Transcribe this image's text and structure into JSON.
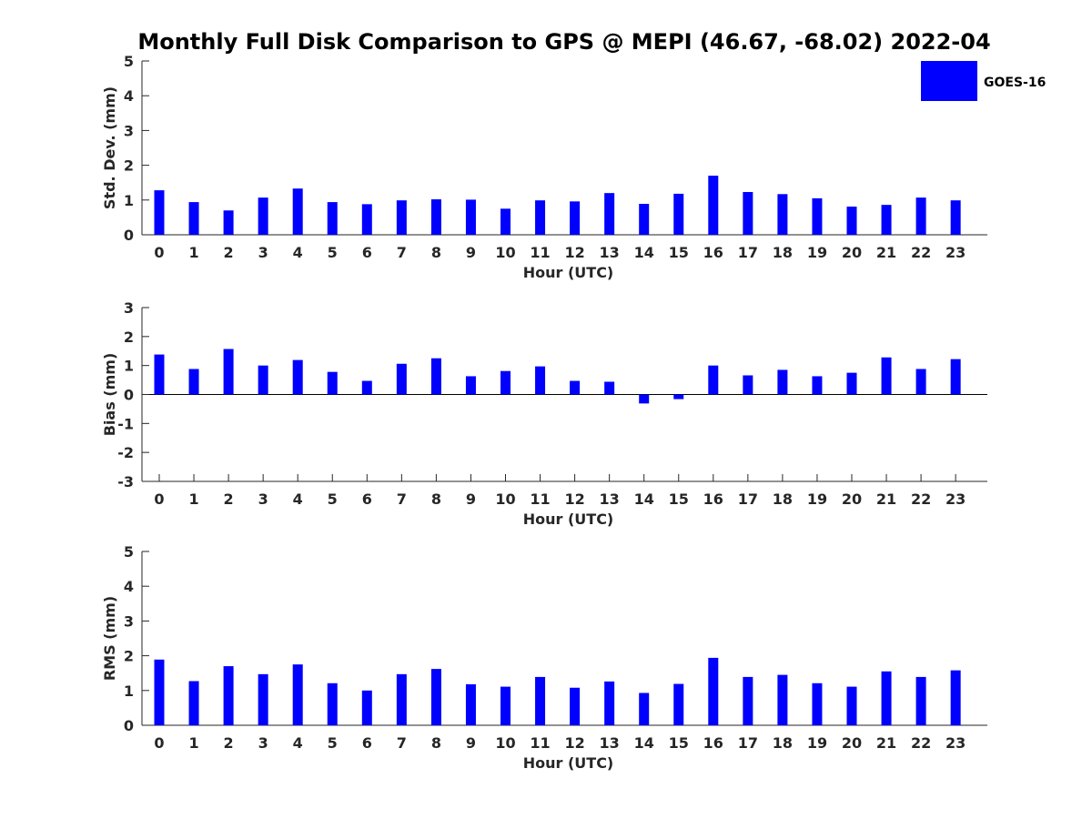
{
  "title": "Monthly Full Disk Comparison to GPS @ MEPI (46.67, -68.02) 2022-04",
  "legend": {
    "label": "GOES-16",
    "color": "#0000ff",
    "placement": "top-right"
  },
  "chart_data": [
    {
      "type": "bar",
      "xlabel": "Hour (UTC)",
      "ylabel": "Std. Dev. (mm)",
      "ylim": [
        0,
        5
      ],
      "yticks": [
        "0",
        "1",
        "2",
        "3",
        "4",
        "5"
      ],
      "categories": [
        "0",
        "1",
        "2",
        "3",
        "4",
        "5",
        "6",
        "7",
        "8",
        "9",
        "10",
        "11",
        "12",
        "13",
        "14",
        "15",
        "16",
        "17",
        "18",
        "19",
        "20",
        "21",
        "22",
        "23"
      ],
      "series": [
        {
          "name": "GOES-16",
          "values": [
            1.28,
            0.94,
            0.7,
            1.07,
            1.33,
            0.94,
            0.88,
            0.99,
            1.02,
            1.01,
            0.75,
            0.99,
            0.96,
            1.2,
            0.89,
            1.18,
            1.7,
            1.23,
            1.17,
            1.05,
            0.81,
            0.86,
            1.07,
            0.99
          ]
        }
      ]
    },
    {
      "type": "bar",
      "xlabel": "Hour (UTC)",
      "ylabel": "Bias (mm)",
      "ylim": [
        -3,
        3
      ],
      "yticks": [
        "-3",
        "-2",
        "-1",
        "0",
        "1",
        "2",
        "3"
      ],
      "categories": [
        "0",
        "1",
        "2",
        "3",
        "4",
        "5",
        "6",
        "7",
        "8",
        "9",
        "10",
        "11",
        "12",
        "13",
        "14",
        "15",
        "16",
        "17",
        "18",
        "19",
        "20",
        "21",
        "22",
        "23"
      ],
      "series": [
        {
          "name": "GOES-16",
          "values": [
            1.38,
            0.88,
            1.57,
            1.0,
            1.19,
            0.78,
            0.47,
            1.06,
            1.25,
            0.63,
            0.81,
            0.97,
            0.47,
            0.44,
            -0.31,
            -0.16,
            1.0,
            0.66,
            0.85,
            0.63,
            0.75,
            1.28,
            0.88,
            1.22
          ]
        }
      ]
    },
    {
      "type": "bar",
      "xlabel": "Hour (UTC)",
      "ylabel": "RMS (mm)",
      "ylim": [
        0,
        5
      ],
      "yticks": [
        "0",
        "1",
        "2",
        "3",
        "4",
        "5"
      ],
      "categories": [
        "0",
        "1",
        "2",
        "3",
        "4",
        "5",
        "6",
        "7",
        "8",
        "9",
        "10",
        "11",
        "12",
        "13",
        "14",
        "15",
        "16",
        "17",
        "18",
        "19",
        "20",
        "21",
        "22",
        "23"
      ],
      "series": [
        {
          "name": "GOES-16",
          "values": [
            1.89,
            1.27,
            1.7,
            1.47,
            1.75,
            1.21,
            1.0,
            1.47,
            1.62,
            1.18,
            1.11,
            1.39,
            1.08,
            1.26,
            0.93,
            1.19,
            1.94,
            1.39,
            1.45,
            1.21,
            1.11,
            1.55,
            1.39,
            1.58
          ]
        }
      ]
    }
  ]
}
